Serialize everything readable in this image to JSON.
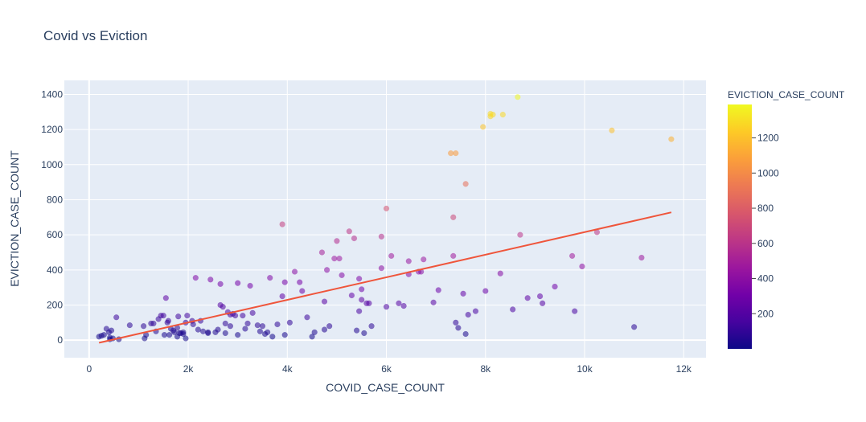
{
  "chart_data": {
    "type": "scatter",
    "title": "Covid vs Eviction",
    "xlabel": "COVID_CASE_COUNT",
    "ylabel": "EVICTION_CASE_COUNT",
    "xlim": [
      -500,
      12450
    ],
    "ylim": [
      -100,
      1480
    ],
    "x_ticks": [
      0,
      2000,
      4000,
      6000,
      8000,
      10000,
      12000
    ],
    "x_tick_labels": [
      "0",
      "2k",
      "4k",
      "6k",
      "8k",
      "10k",
      "12k"
    ],
    "y_ticks": [
      0,
      200,
      400,
      600,
      800,
      1000,
      1200,
      1400
    ],
    "y_tick_labels": [
      "0",
      "200",
      "400",
      "600",
      "800",
      "1000",
      "1200",
      "1400"
    ],
    "grid": true,
    "colorbar": {
      "title": "EVICTION_CASE_COUNT",
      "min": 0,
      "max": 1390,
      "ticks": [
        200,
        400,
        600,
        800,
        1000,
        1200
      ],
      "tick_labels": [
        "200",
        "400",
        "600",
        "800",
        "1000",
        "1200"
      ],
      "colorscale": [
        "#0d0887",
        "#46039f",
        "#7201a8",
        "#9c179e",
        "#bd3786",
        "#d8576b",
        "#ed7953",
        "#fb9f3a",
        "#fdca26",
        "#f0f921"
      ]
    },
    "trendline": {
      "x": [
        200,
        11750
      ],
      "y": [
        -15,
        728
      ],
      "color": "#ef553b"
    },
    "points": [
      [
        200,
        20
      ],
      [
        250,
        25
      ],
      [
        300,
        30
      ],
      [
        350,
        65
      ],
      [
        400,
        45
      ],
      [
        420,
        15
      ],
      [
        450,
        55
      ],
      [
        420,
        5
      ],
      [
        480,
        10
      ],
      [
        550,
        130
      ],
      [
        600,
        5
      ],
      [
        820,
        85
      ],
      [
        1100,
        80
      ],
      [
        1150,
        30
      ],
      [
        1120,
        10
      ],
      [
        1250,
        95
      ],
      [
        1300,
        95
      ],
      [
        1350,
        50
      ],
      [
        1400,
        120
      ],
      [
        1450,
        140
      ],
      [
        1500,
        140
      ],
      [
        1520,
        30
      ],
      [
        1550,
        240
      ],
      [
        1580,
        100
      ],
      [
        1600,
        110
      ],
      [
        1620,
        30
      ],
      [
        1650,
        65
      ],
      [
        1700,
        55
      ],
      [
        1720,
        45
      ],
      [
        1780,
        20
      ],
      [
        1780,
        70
      ],
      [
        1800,
        135
      ],
      [
        1820,
        40
      ],
      [
        1850,
        40
      ],
      [
        1900,
        45
      ],
      [
        1900,
        35
      ],
      [
        1950,
        10
      ],
      [
        1950,
        100
      ],
      [
        1980,
        140
      ],
      [
        2080,
        110
      ],
      [
        2100,
        90
      ],
      [
        2150,
        355
      ],
      [
        2200,
        60
      ],
      [
        2250,
        110
      ],
      [
        2300,
        50
      ],
      [
        2400,
        45
      ],
      [
        2400,
        40
      ],
      [
        2450,
        345
      ],
      [
        2550,
        45
      ],
      [
        2600,
        60
      ],
      [
        2650,
        320
      ],
      [
        2650,
        200
      ],
      [
        2700,
        190
      ],
      [
        2750,
        95
      ],
      [
        2750,
        40
      ],
      [
        2800,
        160
      ],
      [
        2850,
        145
      ],
      [
        2850,
        80
      ],
      [
        2900,
        150
      ],
      [
        2950,
        140
      ],
      [
        3000,
        30
      ],
      [
        3000,
        325
      ],
      [
        3100,
        140
      ],
      [
        3150,
        65
      ],
      [
        3200,
        95
      ],
      [
        3250,
        310
      ],
      [
        3300,
        155
      ],
      [
        3400,
        85
      ],
      [
        3450,
        50
      ],
      [
        3500,
        80
      ],
      [
        3550,
        35
      ],
      [
        3600,
        45
      ],
      [
        3650,
        355
      ],
      [
        3700,
        20
      ],
      [
        3800,
        90
      ],
      [
        3900,
        250
      ],
      [
        3900,
        660
      ],
      [
        3950,
        330
      ],
      [
        3950,
        30
      ],
      [
        4050,
        100
      ],
      [
        4150,
        390
      ],
      [
        4250,
        330
      ],
      [
        4300,
        280
      ],
      [
        4400,
        130
      ],
      [
        4500,
        20
      ],
      [
        4550,
        45
      ],
      [
        4700,
        500
      ],
      [
        4750,
        60
      ],
      [
        4750,
        220
      ],
      [
        4800,
        400
      ],
      [
        4850,
        80
      ],
      [
        4950,
        465
      ],
      [
        5000,
        565
      ],
      [
        5050,
        465
      ],
      [
        5100,
        370
      ],
      [
        5250,
        620
      ],
      [
        5300,
        255
      ],
      [
        5350,
        580
      ],
      [
        5400,
        55
      ],
      [
        5450,
        350
      ],
      [
        5450,
        165
      ],
      [
        5500,
        230
      ],
      [
        5500,
        290
      ],
      [
        5550,
        40
      ],
      [
        5600,
        210
      ],
      [
        5650,
        210
      ],
      [
        5700,
        80
      ],
      [
        5900,
        410
      ],
      [
        5900,
        590
      ],
      [
        6000,
        190
      ],
      [
        6000,
        750
      ],
      [
        6100,
        480
      ],
      [
        6250,
        210
      ],
      [
        6350,
        195
      ],
      [
        6450,
        375
      ],
      [
        6450,
        450
      ],
      [
        6650,
        390
      ],
      [
        6700,
        390
      ],
      [
        6750,
        460
      ],
      [
        6950,
        215
      ],
      [
        7050,
        285
      ],
      [
        7300,
        1065
      ],
      [
        7350,
        480
      ],
      [
        7350,
        700
      ],
      [
        7400,
        1065
      ],
      [
        7400,
        100
      ],
      [
        7450,
        70
      ],
      [
        7550,
        265
      ],
      [
        7600,
        35
      ],
      [
        7600,
        890
      ],
      [
        7650,
        145
      ],
      [
        7800,
        165
      ],
      [
        7950,
        1215
      ],
      [
        8000,
        280
      ],
      [
        8100,
        1275
      ],
      [
        8100,
        1290
      ],
      [
        8150,
        1285
      ],
      [
        8300,
        380
      ],
      [
        8350,
        1285
      ],
      [
        8550,
        175
      ],
      [
        8700,
        600
      ],
      [
        8650,
        1385
      ],
      [
        8850,
        240
      ],
      [
        9100,
        250
      ],
      [
        9150,
        210
      ],
      [
        9400,
        305
      ],
      [
        9750,
        480
      ],
      [
        9800,
        165
      ],
      [
        9950,
        420
      ],
      [
        10250,
        615
      ],
      [
        10550,
        1195
      ],
      [
        11000,
        75
      ],
      [
        11150,
        470
      ],
      [
        11750,
        1145
      ]
    ]
  }
}
